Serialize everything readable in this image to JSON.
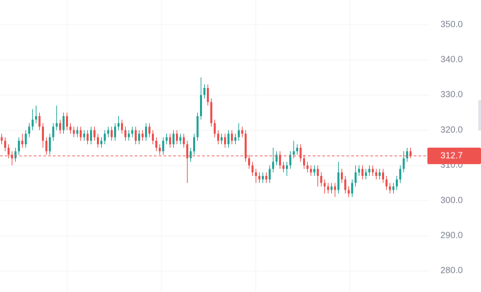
{
  "chart_data": {
    "type": "candlestick",
    "up_color": "#26a69a",
    "down_color": "#ef5350",
    "grid": true,
    "ylim": [
      274,
      357
    ],
    "yticks": [
      {
        "value": 280,
        "label": "280.0"
      },
      {
        "value": 290,
        "label": "290.0"
      },
      {
        "value": 300,
        "label": "300.0"
      },
      {
        "value": 310,
        "label": "310.0"
      },
      {
        "value": 320,
        "label": "320.0"
      },
      {
        "value": 330,
        "label": "330.0"
      },
      {
        "value": 340,
        "label": "340.0"
      },
      {
        "value": 350,
        "label": "350.0"
      }
    ],
    "open": [
      318,
      317,
      315,
      313,
      312,
      314,
      317,
      316,
      319,
      321,
      323,
      324,
      321,
      317,
      314,
      318,
      321,
      322,
      320,
      324,
      321,
      320,
      319,
      320,
      318,
      319,
      317,
      320,
      318,
      316,
      317,
      319,
      320,
      318,
      321,
      322,
      320,
      318,
      319,
      320,
      317,
      319,
      318,
      321,
      319,
      317,
      315,
      314,
      317,
      318,
      316,
      319,
      317,
      318,
      316,
      312,
      314,
      318,
      324,
      330,
      332,
      328,
      322,
      319,
      317,
      318,
      316,
      319,
      317,
      318,
      320,
      319,
      312,
      310,
      308,
      307,
      306,
      307,
      306,
      309,
      311,
      313,
      310,
      309,
      310,
      313,
      314,
      315,
      312,
      310,
      309,
      308,
      309,
      307,
      305,
      304,
      303,
      304,
      303,
      308,
      306,
      303,
      302,
      305,
      308,
      309,
      307,
      308,
      309,
      308,
      307,
      308,
      306,
      304,
      303,
      304,
      306,
      309,
      312,
      314
    ],
    "high": [
      319,
      318,
      316,
      314,
      315,
      318,
      319,
      320,
      322,
      326,
      327,
      325,
      322,
      318,
      319,
      322,
      327,
      323,
      325,
      325,
      322,
      321,
      321,
      321,
      320,
      320,
      321,
      321,
      319,
      318,
      320,
      321,
      321,
      322,
      324,
      323,
      321,
      320,
      321,
      321,
      320,
      320,
      322,
      322,
      320,
      318,
      316,
      318,
      319,
      319,
      320,
      320,
      319,
      319,
      317,
      315,
      319,
      325,
      335,
      333,
      333,
      329,
      323,
      320,
      319,
      319,
      320,
      320,
      319,
      322,
      321,
      320,
      313,
      311,
      309,
      308,
      308,
      308,
      310,
      315,
      314,
      314,
      311,
      311,
      314,
      317,
      316,
      316,
      313,
      311,
      310,
      310,
      310,
      308,
      306,
      305,
      305,
      305,
      311,
      309,
      307,
      304,
      306,
      310,
      310,
      310,
      309,
      310,
      310,
      309,
      309,
      309,
      307,
      305,
      305,
      307,
      310,
      314,
      315,
      315
    ],
    "low": [
      316,
      314,
      312,
      310,
      311,
      313,
      315,
      315,
      318,
      320,
      322,
      320,
      315,
      313,
      313,
      317,
      320,
      319,
      319,
      320,
      319,
      318,
      318,
      317,
      317,
      316,
      316,
      317,
      315,
      315,
      316,
      318,
      317,
      317,
      320,
      319,
      317,
      317,
      318,
      316,
      316,
      317,
      317,
      318,
      316,
      314,
      313,
      313,
      316,
      315,
      315,
      316,
      316,
      315,
      305,
      311,
      313,
      317,
      323,
      329,
      327,
      321,
      318,
      316,
      316,
      315,
      315,
      316,
      316,
      317,
      318,
      311,
      309,
      307,
      305,
      305,
      305,
      305,
      305,
      308,
      310,
      309,
      308,
      307,
      309,
      312,
      313,
      311,
      309,
      308,
      307,
      307,
      304,
      304,
      302,
      302,
      302,
      301,
      302,
      305,
      302,
      301,
      301,
      304,
      307,
      306,
      306,
      307,
      307,
      306,
      306,
      305,
      303,
      302,
      302,
      303,
      305,
      308,
      311,
      312
    ],
    "close": [
      317,
      315,
      313,
      312,
      314,
      317,
      316,
      319,
      321,
      323,
      324,
      321,
      317,
      314,
      318,
      321,
      322,
      320,
      324,
      321,
      320,
      319,
      320,
      318,
      319,
      317,
      320,
      318,
      316,
      317,
      319,
      320,
      318,
      321,
      322,
      320,
      318,
      319,
      320,
      317,
      319,
      318,
      321,
      319,
      317,
      315,
      314,
      317,
      318,
      316,
      319,
      317,
      318,
      316,
      312,
      314,
      318,
      324,
      330,
      332,
      328,
      322,
      319,
      317,
      318,
      316,
      319,
      317,
      318,
      320,
      319,
      312,
      310,
      308,
      307,
      306,
      307,
      306,
      309,
      311,
      313,
      310,
      309,
      310,
      313,
      314,
      315,
      312,
      310,
      309,
      308,
      309,
      307,
      305,
      304,
      303,
      304,
      303,
      308,
      306,
      303,
      302,
      305,
      308,
      309,
      307,
      308,
      309,
      308,
      307,
      308,
      306,
      304,
      303,
      304,
      306,
      309,
      312,
      314,
      312.7
    ]
  }
}
